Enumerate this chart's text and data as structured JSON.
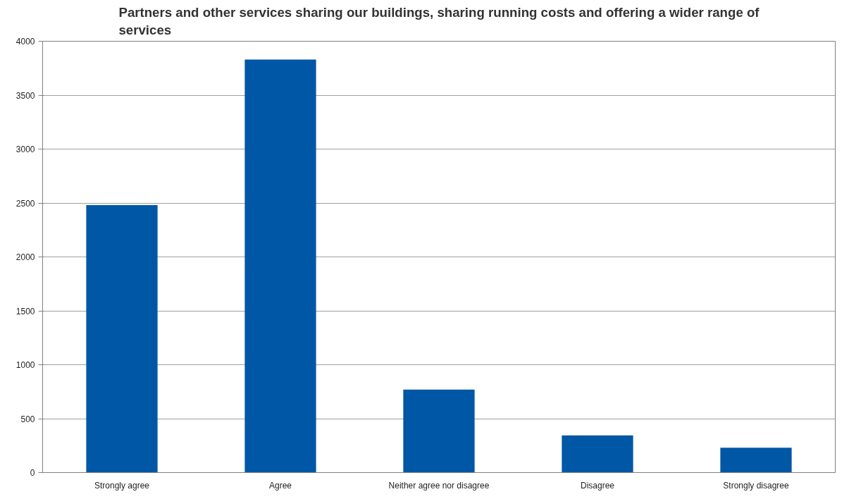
{
  "chart_data": {
    "type": "bar",
    "title": "Partners and other services sharing our buildings, sharing running costs and offering a wider range of services",
    "categories": [
      "Strongly agree",
      "Agree",
      "Neither agree nor disagree",
      "Disagree",
      "Strongly disagree"
    ],
    "values": [
      2480,
      3830,
      770,
      345,
      230
    ],
    "color": "#0057a6",
    "ylim": [
      0,
      4000
    ],
    "yticks": [
      0,
      500,
      1000,
      1500,
      2000,
      2500,
      3000,
      3500,
      4000
    ],
    "grid": "y"
  }
}
